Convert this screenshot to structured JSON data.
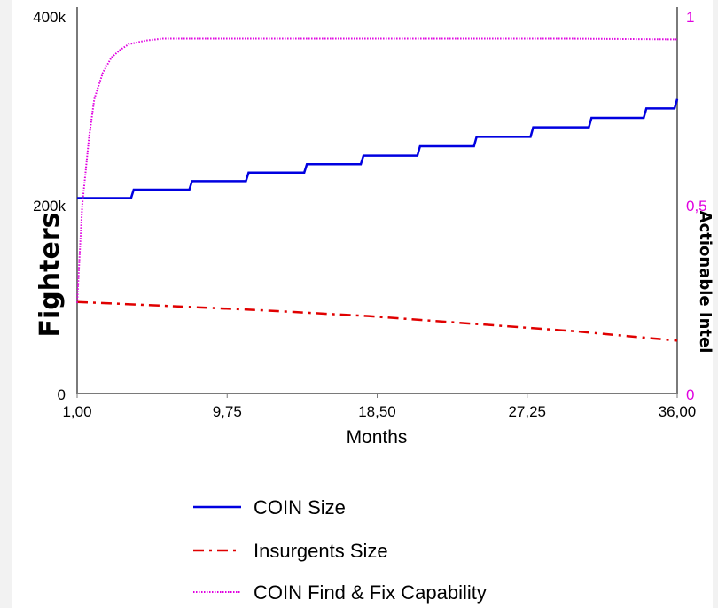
{
  "chart_data": {
    "type": "line",
    "xlabel": "Months",
    "ylabel": "Fighters",
    "ylabel_right": "Actionable Intel",
    "xlim": [
      1,
      36
    ],
    "ylim": [
      0,
      400000
    ],
    "ylim_right": [
      0,
      1
    ],
    "x_ticks": [
      "1,00",
      "9,75",
      "18,50",
      "27,25",
      "36,00"
    ],
    "y_ticks": [
      "0",
      "200k",
      "400k"
    ],
    "y_ticks_right": [
      "0",
      "0,5",
      "1"
    ],
    "legend_position": "bottom",
    "grid": false,
    "series": [
      {
        "name": "COIN Size",
        "axis": "left",
        "color": "#0000e0",
        "style": "solid",
        "step": true,
        "x": [
          1,
          4.3,
          7.7,
          11.0,
          14.4,
          17.7,
          21.0,
          24.3,
          27.6,
          31.0,
          34.2,
          36
        ],
        "values": [
          207000,
          216000,
          225000,
          234000,
          243000,
          252000,
          262000,
          272000,
          282000,
          292000,
          302000,
          312000
        ]
      },
      {
        "name": "Insurgents Size",
        "axis": "left",
        "color": "#e00000",
        "style": "dashdot",
        "x": [
          1,
          6,
          12,
          18,
          24,
          30,
          36
        ],
        "values": [
          97000,
          93000,
          88000,
          82000,
          74000,
          66000,
          56000
        ]
      },
      {
        "name": "COIN Find & Fix Capability",
        "axis": "right",
        "color": "#e000e0",
        "style": "dotted",
        "x": [
          1,
          1.3,
          1.7,
          2.0,
          2.5,
          3.0,
          3.5,
          4.0,
          5.0,
          6.0,
          7.0,
          10.0,
          20.0,
          30.0,
          36.0
        ],
        "values": [
          0.24,
          0.5,
          0.68,
          0.78,
          0.85,
          0.89,
          0.91,
          0.925,
          0.935,
          0.94,
          0.94,
          0.94,
          0.94,
          0.94,
          0.938
        ]
      }
    ]
  }
}
